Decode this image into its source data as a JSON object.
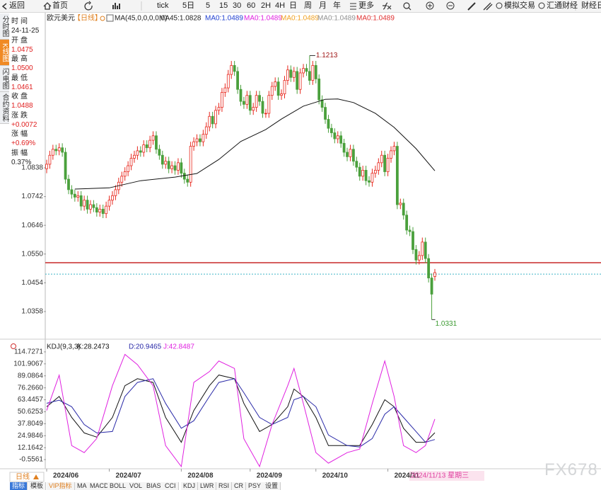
{
  "toolbar": [
    "返回",
    "首页",
    "tick",
    "5日",
    "5",
    "15",
    "30",
    "60",
    "2H",
    "4H",
    "日",
    "周",
    "月",
    "年",
    "更多",
    "模拟交易",
    "汇通财经",
    "财经日"
  ],
  "sidebar": {
    "tabs": [
      "分时图",
      "K线图",
      "闪电图",
      "合约资料"
    ],
    "active": 1
  },
  "info": [
    {
      "label": "时间",
      "value": "24-11-25"
    },
    {
      "label": "开盘",
      "value": "1.0475",
      "color": "#e02020"
    },
    {
      "label": "最高",
      "value": "1.0500",
      "color": "#e02020"
    },
    {
      "label": "最低",
      "value": "1.0461",
      "color": "#e02020"
    },
    {
      "label": "收盘",
      "value": "1.0488",
      "color": "#e02020"
    },
    {
      "label": "涨跌",
      "value": "+0.0072",
      "color": "#e02020"
    },
    {
      "label": "涨幅",
      "value": "+0.69%",
      "color": "#e02020"
    },
    {
      "label": "振幅",
      "value": "0.37%"
    }
  ],
  "chart_data": [
    {
      "type": "candlestick",
      "title": "欧元美元",
      "period": "【日线】",
      "indicator": "MA(45,0,0,0,0,0)",
      "legend": [
        {
          "text": "MA45:1.0828",
          "color": "#222222"
        },
        {
          "text": "MA0:1.0489",
          "color": "#2040d0"
        },
        {
          "text": "MA0:1.0489",
          "color": "#e020e0"
        },
        {
          "text": "MA0:1.0489",
          "color": "#f0a020"
        },
        {
          "text": "MA0:1.0489",
          "color": "#909090"
        },
        {
          "text": "MA0:1.0489",
          "color": "#e03030"
        }
      ],
      "up_color": "#e8281e",
      "down_color": "#4aa03c",
      "candles": [
        [
          1.0835,
          1.0865,
          1.082,
          1.085
        ],
        [
          1.085,
          1.0895,
          1.0835,
          1.088
        ],
        [
          1.088,
          1.0915,
          1.0865,
          1.09
        ],
        [
          1.09,
          1.0915,
          1.088,
          1.0895
        ],
        [
          1.0895,
          1.092,
          1.088,
          1.0905
        ],
        [
          1.0905,
          1.092,
          1.0875,
          1.089
        ],
        [
          1.089,
          1.0905,
          1.0785,
          1.08
        ],
        [
          1.08,
          1.0815,
          1.075,
          1.0765
        ],
        [
          1.0765,
          1.078,
          1.0735,
          1.075
        ],
        [
          1.075,
          1.0765,
          1.0725,
          1.074
        ],
        [
          1.074,
          1.076,
          1.0725,
          1.0745
        ],
        [
          1.0745,
          1.076,
          1.0695,
          1.071
        ],
        [
          1.071,
          1.0745,
          1.0695,
          1.073
        ],
        [
          1.073,
          1.0745,
          1.0685,
          1.07
        ],
        [
          1.07,
          1.073,
          1.0685,
          1.0715
        ],
        [
          1.0715,
          1.073,
          1.069,
          1.0705
        ],
        [
          1.0705,
          1.072,
          1.0675,
          1.069
        ],
        [
          1.069,
          1.0715,
          1.0675,
          1.07
        ],
        [
          1.07,
          1.0715,
          1.067,
          1.0685
        ],
        [
          1.0685,
          1.0725,
          1.067,
          1.071
        ],
        [
          1.071,
          1.0745,
          1.0695,
          1.073
        ],
        [
          1.073,
          1.076,
          1.0715,
          1.0745
        ],
        [
          1.0745,
          1.078,
          1.073,
          1.0765
        ],
        [
          1.0765,
          1.0805,
          1.075,
          1.079
        ],
        [
          1.079,
          1.0825,
          1.0775,
          1.081
        ],
        [
          1.081,
          1.084,
          1.0795,
          1.0825
        ],
        [
          1.0825,
          1.086,
          1.081,
          1.0845
        ],
        [
          1.0845,
          1.0885,
          1.083,
          1.087
        ],
        [
          1.087,
          1.0895,
          1.0855,
          1.088
        ],
        [
          1.088,
          1.091,
          1.0865,
          1.0895
        ],
        [
          1.0895,
          1.091,
          1.0875,
          1.089
        ],
        [
          1.089,
          1.093,
          1.0875,
          1.0915
        ],
        [
          1.0915,
          1.093,
          1.089,
          1.0905
        ],
        [
          1.0905,
          1.0945,
          1.089,
          1.093
        ],
        [
          1.093,
          1.096,
          1.0915,
          1.0945
        ],
        [
          1.0945,
          1.096,
          1.0885,
          1.09
        ],
        [
          1.09,
          1.0915,
          1.0865,
          1.088
        ],
        [
          1.088,
          1.0895,
          1.0835,
          1.085
        ],
        [
          1.085,
          1.0875,
          1.0835,
          1.086
        ],
        [
          1.086,
          1.0875,
          1.082,
          1.0835
        ],
        [
          1.0835,
          1.086,
          1.082,
          1.0845
        ],
        [
          1.0845,
          1.086,
          1.0815,
          1.083
        ],
        [
          1.083,
          1.087,
          1.0815,
          1.0855
        ],
        [
          1.0855,
          1.087,
          1.0805,
          1.082
        ],
        [
          1.082,
          1.0835,
          1.0785,
          1.08
        ],
        [
          1.08,
          1.0815,
          1.0775,
          1.079
        ],
        [
          1.079,
          1.0925,
          1.0775,
          1.091
        ],
        [
          1.091,
          1.094,
          1.0895,
          1.0925
        ],
        [
          1.0925,
          1.095,
          1.091,
          1.0935
        ],
        [
          1.0935,
          1.095,
          1.091,
          1.0925
        ],
        [
          1.0925,
          1.0965,
          1.091,
          1.095
        ],
        [
          1.095,
          1.099,
          1.0935,
          1.0975
        ],
        [
          1.0975,
          1.1025,
          1.096,
          1.101
        ],
        [
          1.101,
          1.1025,
          1.097,
          1.0985
        ],
        [
          1.0985,
          1.1045,
          1.097,
          1.103
        ],
        [
          1.103,
          1.1055,
          1.1015,
          1.104
        ],
        [
          1.104,
          1.1105,
          1.1025,
          1.109
        ],
        [
          1.109,
          1.112,
          1.1075,
          1.1105
        ],
        [
          1.1105,
          1.1165,
          1.109,
          1.115
        ],
        [
          1.115,
          1.1195,
          1.1135,
          1.118
        ],
        [
          1.118,
          1.1195,
          1.1145,
          1.116
        ],
        [
          1.116,
          1.1175,
          1.1085,
          1.11
        ],
        [
          1.11,
          1.1115,
          1.1045,
          1.106
        ],
        [
          1.106,
          1.1075,
          1.1035,
          1.105
        ],
        [
          1.105,
          1.1095,
          1.1035,
          1.108
        ],
        [
          1.108,
          1.1095,
          1.1015,
          1.103
        ],
        [
          1.103,
          1.1055,
          1.1015,
          1.104
        ],
        [
          1.104,
          1.1095,
          1.1025,
          1.108
        ],
        [
          1.108,
          1.1095,
          1.1045,
          1.106
        ],
        [
          1.106,
          1.1075,
          1.1005,
          1.102
        ],
        [
          1.102,
          1.1035,
          1.1005,
          1.102
        ],
        [
          1.102,
          1.1095,
          1.1005,
          1.108
        ],
        [
          1.108,
          1.1125,
          1.1065,
          1.111
        ],
        [
          1.111,
          1.114,
          1.1095,
          1.1125
        ],
        [
          1.1125,
          1.114,
          1.1065,
          1.108
        ],
        [
          1.108,
          1.11,
          1.1065,
          1.1085
        ],
        [
          1.1085,
          1.1145,
          1.107,
          1.113
        ],
        [
          1.113,
          1.118,
          1.1115,
          1.1165
        ],
        [
          1.1165,
          1.118,
          1.1125,
          1.114
        ],
        [
          1.114,
          1.1175,
          1.1125,
          1.116
        ],
        [
          1.116,
          1.1175,
          1.1085,
          1.11
        ],
        [
          1.11,
          1.117,
          1.1085,
          1.1155
        ],
        [
          1.1155,
          1.1185,
          1.114,
          1.117
        ],
        [
          1.117,
          1.1185,
          1.1145,
          1.116
        ],
        [
          1.116,
          1.1213,
          1.1115,
          1.113
        ],
        [
          1.113,
          1.1195,
          1.1115,
          1.118
        ],
        [
          1.118,
          1.1195,
          1.112,
          1.1135
        ],
        [
          1.1135,
          1.115,
          1.105,
          1.1065
        ],
        [
          1.1065,
          1.108,
          1.1025,
          1.104
        ],
        [
          1.104,
          1.1055,
          1.0985,
          1.1
        ],
        [
          1.1,
          1.1015,
          1.0955,
          1.097
        ],
        [
          1.097,
          1.0985,
          1.094,
          1.0955
        ],
        [
          1.0955,
          1.097,
          1.092,
          1.0935
        ],
        [
          1.0935,
          1.096,
          1.092,
          1.0945
        ],
        [
          1.0945,
          1.096,
          1.0905,
          1.092
        ],
        [
          1.092,
          1.0935,
          1.0875,
          1.089
        ],
        [
          1.089,
          1.0905,
          1.086,
          1.0875
        ],
        [
          1.0875,
          1.0915,
          1.086,
          1.09
        ],
        [
          1.09,
          1.0915,
          1.0845,
          1.086
        ],
        [
          1.086,
          1.0875,
          1.0825,
          1.084
        ],
        [
          1.084,
          1.0855,
          1.0795,
          1.081
        ],
        [
          1.081,
          1.0845,
          1.0795,
          1.083
        ],
        [
          1.083,
          1.0845,
          1.078,
          1.0795
        ],
        [
          1.0795,
          1.081,
          1.0775,
          1.079
        ],
        [
          1.079,
          1.0835,
          1.0775,
          1.082
        ],
        [
          1.082,
          1.0845,
          1.0805,
          1.083
        ],
        [
          1.083,
          1.087,
          1.0815,
          1.0855
        ],
        [
          1.0855,
          1.0895,
          1.084,
          1.088
        ],
        [
          1.088,
          1.0895,
          1.081,
          1.0825
        ],
        [
          1.0825,
          1.0885,
          1.081,
          1.087
        ],
        [
          1.087,
          1.091,
          1.0855,
          1.0895
        ],
        [
          1.0895,
          1.0925,
          1.088,
          1.091
        ],
        [
          1.091,
          1.0925,
          1.07,
          1.0715
        ],
        [
          1.0715,
          1.0735,
          1.07,
          1.072
        ],
        [
          1.072,
          1.0735,
          1.0665,
          1.068
        ],
        [
          1.068,
          1.0695,
          1.0615,
          1.063
        ],
        [
          1.063,
          1.0645,
          1.061,
          1.0625
        ],
        [
          1.0625,
          1.064,
          1.055,
          1.0565
        ],
        [
          1.0565,
          1.058,
          1.0515,
          1.053
        ],
        [
          1.053,
          1.056,
          1.0515,
          1.0545
        ],
        [
          1.0545,
          1.0605,
          1.053,
          1.059
        ],
        [
          1.059,
          1.0605,
          1.052,
          1.0535
        ],
        [
          1.0535,
          1.055,
          1.0455,
          1.047
        ],
        [
          1.047,
          1.0485,
          1.0331,
          1.0416
        ],
        [
          1.0475,
          1.05,
          1.0461,
          1.0488
        ]
      ],
      "ma": {
        "name": "MA45",
        "color": "#111111",
        "x": [
          9,
          20,
          30,
          41,
          48,
          55,
          62,
          70,
          75,
          82,
          89,
          93,
          98,
          105,
          111,
          118,
          124
        ],
        "values": [
          1.0767,
          1.0771,
          1.0795,
          1.0807,
          1.0819,
          1.0866,
          1.0926,
          1.0966,
          1.1001,
          1.1044,
          1.1067,
          1.1068,
          1.1056,
          1.102,
          1.0973,
          1.0902,
          1.0828
        ]
      },
      "hlines": [
        {
          "value": 1.0521,
          "color": "#c82828",
          "style": "solid"
        },
        {
          "value": 1.0483,
          "color": "#3fb5c8",
          "style": "dotted"
        }
      ],
      "high_color": "#a01818",
      "low_color": "#3a9a30",
      "ylim": [
        1.0268,
        1.1356
      ],
      "yticks": [
        1.0358,
        1.0454,
        {
          "value": 1.055,
          "label": "1.0550"
        },
        1.0646,
        1.0742,
        1.0838
      ]
    },
    {
      "type": "line",
      "title": "KDJ(9,3,3)",
      "xlim": [
        0,
        124
      ],
      "series": [
        {
          "name": "K:28.2473",
          "color": "#111111",
          "x": [
            0,
            4,
            8,
            12,
            16,
            21,
            25,
            29,
            34,
            38,
            43,
            47,
            52,
            55,
            60,
            63,
            68,
            72,
            77,
            79,
            82,
            86,
            90,
            96,
            100,
            104,
            108,
            111,
            114,
            118,
            121,
            124
          ],
          "values": [
            56,
            67,
            44.6,
            28,
            23.5,
            44.6,
            78.5,
            86,
            82,
            44.6,
            18,
            52,
            78.5,
            90,
            86,
            59.6,
            29.5,
            37,
            56,
            75,
            67,
            44.6,
            14.4,
            14.4,
            14.4,
            37,
            63.5,
            56,
            33,
            18,
            18,
            28.2473
          ]
        },
        {
          "name": "D:20.9465",
          "color": "#2a2aa8",
          "x": [
            0,
            4,
            8,
            12,
            16,
            21,
            25,
            29,
            34,
            38,
            43,
            47,
            52,
            55,
            60,
            63,
            68,
            72,
            77,
            79,
            82,
            86,
            90,
            96,
            100,
            104,
            108,
            111,
            114,
            118,
            121,
            124
          ],
          "values": [
            59.7,
            63,
            56,
            37,
            28,
            29.5,
            67,
            82,
            86,
            59.6,
            33,
            41,
            67,
            82,
            86,
            71,
            44.6,
            37,
            44.6,
            63.5,
            67,
            56,
            25.8,
            14.4,
            13,
            22,
            48,
            56,
            44.6,
            29.5,
            18,
            20.9465
          ]
        },
        {
          "name": "J:42.8487",
          "color": "#e020e0",
          "x": [
            0,
            4,
            8,
            12,
            16,
            21,
            25,
            29,
            34,
            38,
            43,
            47,
            52,
            55,
            60,
            63,
            68,
            72,
            77,
            79,
            82,
            86,
            90,
            96,
            100,
            104,
            108,
            111,
            114,
            118,
            121,
            124
          ],
          "values": [
            52,
            89.8,
            14.4,
            6.9,
            22,
            78.5,
            112,
            101,
            78.5,
            14.4,
            -8,
            82,
            93.6,
            105,
            97,
            21.8,
            -8,
            37,
            78.5,
            97,
            59.6,
            6.9,
            -4.4,
            6.9,
            10.7,
            59.6,
            105,
            67,
            14.4,
            6.9,
            14.4,
            42.8487
          ]
        }
      ],
      "ylim": [
        -10.36,
        125.28
      ],
      "yticks": [
        -0.5561,
        12.1642,
        24.9846,
        37.8049,
        50.6253,
        63.4457,
        {
          "value": 76.266,
          "label": "76.2660"
        },
        89.0864,
        101.9067,
        114.7271
      ],
      "xticks": [
        {
          "value": 0,
          "label": "2024/06"
        },
        {
          "value": 20,
          "label": "2024/07"
        },
        {
          "value": 43,
          "label": "2024/08"
        },
        {
          "value": 65,
          "label": "2024/09"
        },
        {
          "value": 86,
          "label": "2024/10"
        },
        {
          "value": 109,
          "label": "2024/11"
        }
      ],
      "cursor_date": "2024/11/13 星期三"
    }
  ],
  "period_button": "日线",
  "bottom_tabs": {
    "tabs": [
      "指标",
      "模板",
      "VIP指标",
      "MA",
      "MACD",
      "BOLL",
      "VOL",
      "BIAS",
      "CCI",
      "KDJ",
      "LWR",
      "RSI",
      "CR",
      "PSY",
      "设置"
    ],
    "active": 0,
    "vip": 2
  },
  "watermark": "FX678"
}
